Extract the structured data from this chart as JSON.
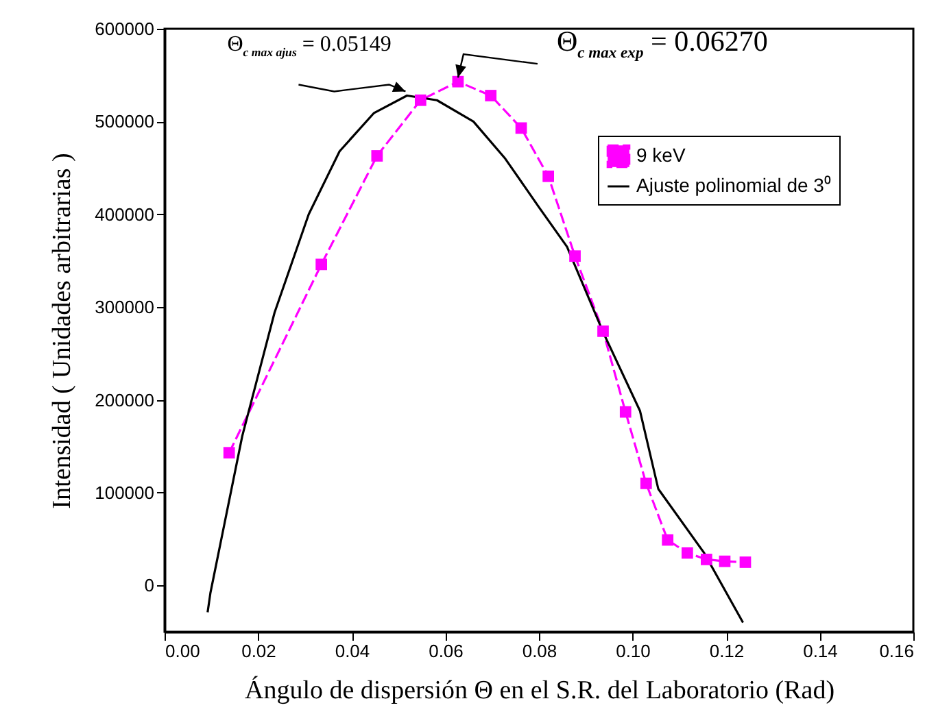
{
  "chart_data": {
    "type": "line",
    "xlabel": "Ángulo de dispersión Θ en el S.R. del Laboratorio (Rad)",
    "ylabel": "Intensidad  ( Unidades arbitrarias )",
    "xlim": [
      0,
      0.16
    ],
    "ylim": [
      -50000,
      600000
    ],
    "xticks": [
      {
        "value": 0,
        "label": "0.00"
      },
      {
        "value": 0.02,
        "label": "0.02"
      },
      {
        "value": 0.04,
        "label": "0.04"
      },
      {
        "value": 0.06,
        "label": "0.06"
      },
      {
        "value": 0.08,
        "label": "0.08"
      },
      {
        "value": 0.1,
        "label": "0.10"
      },
      {
        "value": 0.12,
        "label": "0.12"
      },
      {
        "value": 0.14,
        "label": "0.14"
      },
      {
        "value": 0.16,
        "label": "0.16"
      }
    ],
    "yticks": [
      0,
      100000,
      200000,
      300000,
      400000,
      500000,
      600000
    ],
    "grid": false,
    "legend": "top right",
    "series": [
      {
        "name": "9 keV",
        "color": "#ff00ff",
        "marker": "square",
        "line_style": "dashed",
        "x": [
          0.0138,
          0.0335,
          0.0454,
          0.0547,
          0.0627,
          0.0697,
          0.0762,
          0.082,
          0.0877,
          0.0937,
          0.0985,
          0.1029,
          0.1075,
          0.1117,
          0.1158,
          0.1197,
          0.1241
        ],
        "values": [
          143000,
          346000,
          463000,
          523000,
          543000,
          528000,
          493000,
          441000,
          355000,
          274000,
          187000,
          110000,
          49000,
          35000,
          28000,
          26000,
          25000
        ]
      },
      {
        "name": "Ajuste polinomial de 3⁰",
        "color": "#000000",
        "marker": "none",
        "line_style": "solid",
        "x": [
          0.0092,
          0.0098,
          0.0166,
          0.0235,
          0.0308,
          0.0374,
          0.0447,
          0.0518,
          0.0582,
          0.066,
          0.0728,
          0.0801,
          0.086,
          0.0938,
          0.1016,
          0.1055,
          0.1153,
          0.1236
        ],
        "values": [
          -29000,
          -8000,
          161000,
          294000,
          400000,
          468000,
          509000,
          528000,
          523000,
          500000,
          460000,
          407000,
          365000,
          272000,
          188000,
          104000,
          35000,
          -40000
        ]
      }
    ],
    "annotations": [
      {
        "text": "Θ$_{c max ajus}$ = 0.05149",
        "x": 0.05149,
        "y": 528000
      },
      {
        "text": "Θ$_{c max exp}$ = 0.06270",
        "x": 0.0627,
        "y": 543000
      }
    ]
  }
}
